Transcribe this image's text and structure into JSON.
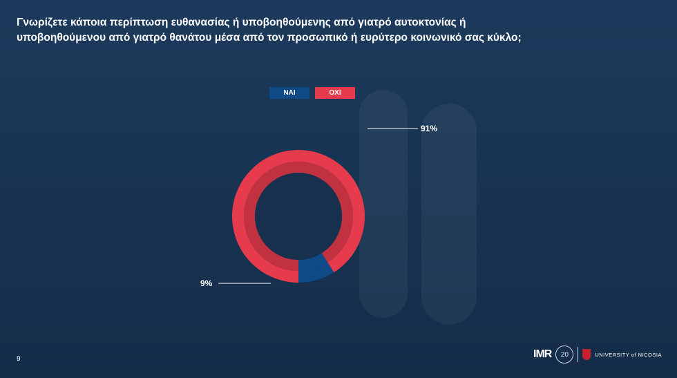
{
  "slide": {
    "title_line1": "Γνωρίζετε κάποια περίπτωση ευθανασίας ή υποβοηθούμενης από γιατρό αυτοκτονίας ή",
    "title_line2": "υποβοηθούμενου από γιατρό θανάτου μέσα από τον προσωπικό ή ευρύτερο κοινωνικό σας κύκλο;",
    "page_number": "9"
  },
  "logos": {
    "imr": "IMR",
    "anniversary": "20",
    "university": "UNIVERSITY of NICOSIA"
  },
  "colors": {
    "nai": "#0e4a86",
    "oxi": "#e63b4d",
    "oxi_inner": "#c23140",
    "hole": "#16304d"
  },
  "chart_data": {
    "type": "pie",
    "variant": "donut",
    "categories": [
      "ΝΑΙ",
      "ΟΧΙ"
    ],
    "values": [
      9,
      91
    ],
    "data_labels": [
      "9%",
      "91%"
    ],
    "legend_position": "top"
  }
}
